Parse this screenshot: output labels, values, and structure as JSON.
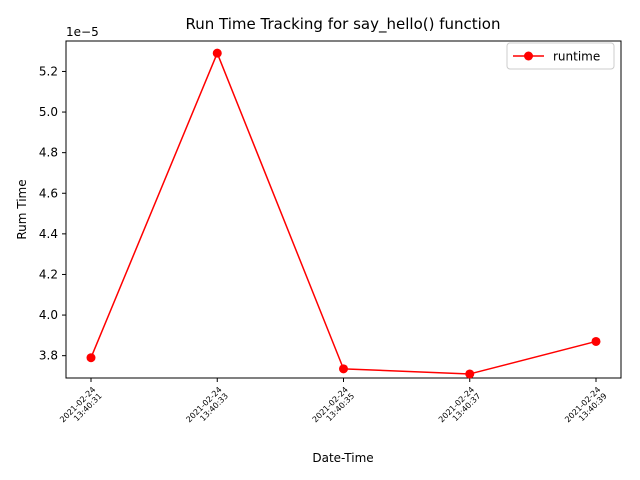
{
  "chart_data": {
    "type": "line",
    "title": "Run Time Tracking for say_hello() function",
    "xlabel": "Date-Time",
    "ylabel": "Rum Time",
    "y_offset_text": "1e−5",
    "x": [
      "2021-02-24 13:40:31",
      "2021-02-24 13:40:33",
      "2021-02-24 13:40:35",
      "2021-02-24 13:40:37",
      "2021-02-24 13:40:39"
    ],
    "x_tick_lines": [
      [
        "2021-02-24",
        "13:40:31"
      ],
      [
        "2021-02-24",
        "13:40:33"
      ],
      [
        "2021-02-24",
        "13:40:35"
      ],
      [
        "2021-02-24",
        "13:40:37"
      ],
      [
        "2021-02-24",
        "13:40:39"
      ]
    ],
    "y_ticks": [
      "3.8",
      "4.0",
      "4.2",
      "4.4",
      "4.6",
      "4.8",
      "5.0",
      "5.2"
    ],
    "y_tick_values": [
      3.8,
      4.0,
      4.2,
      4.4,
      4.6,
      4.8,
      5.0,
      5.2
    ],
    "ylim": [
      3.69,
      5.35
    ],
    "series": [
      {
        "name": "runtime",
        "color": "#ff0000",
        "marker": "circle",
        "values": [
          3.79,
          5.29,
          3.735,
          3.71,
          3.87
        ]
      }
    ],
    "legend": "top-right",
    "grid": false
  }
}
